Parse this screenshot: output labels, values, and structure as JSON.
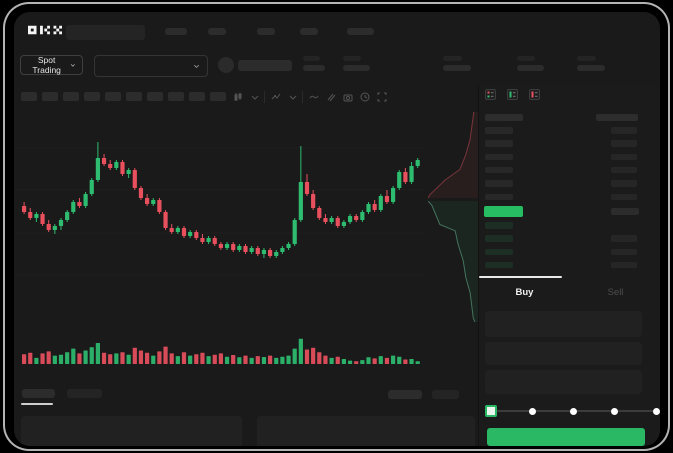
{
  "navbar": {
    "logo_text": "OKX"
  },
  "market_bar": {
    "market_selector": "Spot Trading"
  },
  "toolbar": {
    "interval_buttons": 10,
    "icons": [
      "chart-type-icon",
      "chevron-down-icon",
      "divider",
      "indicators-icon",
      "chevron-down-icon",
      "divider",
      "line-tool-icon",
      "brush-tool-icon",
      "camera-icon",
      "history-clock-icon",
      "fullscreen-icon"
    ]
  },
  "orderbook": {
    "view_icons": [
      "book-all-icon",
      "book-bids-icon",
      "book-asks-icon"
    ],
    "rows": [
      {
        "type": "header",
        "right": true
      },
      {
        "type": "ask",
        "right": true
      },
      {
        "type": "ask",
        "right": true
      },
      {
        "type": "ask",
        "right": true
      },
      {
        "type": "ask",
        "right": true
      },
      {
        "type": "ask",
        "right": true
      },
      {
        "type": "ask",
        "right": true
      },
      {
        "type": "last-price",
        "right": true
      },
      {
        "type": "bid",
        "right": false
      },
      {
        "type": "bid",
        "right": true
      },
      {
        "type": "bid",
        "right": true
      },
      {
        "type": "bid",
        "right": true
      }
    ],
    "last_price_color": "#27bd62"
  },
  "trade_panel": {
    "buy_tab": "Buy",
    "sell_tab": "Sell",
    "input_fields": 3,
    "slider": {
      "stops": [
        0,
        25,
        50,
        75,
        100
      ],
      "active_index": 0
    },
    "buy_button_color": "#2ab864"
  },
  "bottom_bar": {
    "left_tabs": 2,
    "right_buttons": 2,
    "panels": 2,
    "active_tab_index": 0
  },
  "colors": {
    "up": "#2ebd70",
    "down": "#e8505e",
    "accent_green": "#2ab864",
    "surface": "#1a1a1a"
  },
  "chart_data": {
    "type": "candlestick",
    "title": "",
    "note": "skeleton/placeholder trading chart - no numeric axis labels are rendered in the UI",
    "price_scale": "relative 0-100 units (no visible tick labels)",
    "panes": [
      "price",
      "volume",
      "depth-overlay"
    ],
    "grid": "faint horizontal gridlines",
    "up_color": "#2ebd70",
    "down_color": "#e8505e",
    "candles_ohlc": [
      [
        56,
        58,
        52,
        53
      ],
      [
        53,
        55,
        49,
        50
      ],
      [
        50,
        53,
        48,
        52
      ],
      [
        52,
        53,
        46,
        47
      ],
      [
        47,
        49,
        43,
        44
      ],
      [
        44,
        47,
        42,
        46
      ],
      [
        46,
        50,
        44,
        49
      ],
      [
        49,
        54,
        48,
        53
      ],
      [
        53,
        59,
        52,
        58
      ],
      [
        58,
        60,
        55,
        56
      ],
      [
        56,
        63,
        55,
        62
      ],
      [
        62,
        70,
        61,
        69
      ],
      [
        69,
        88,
        68,
        80
      ],
      [
        80,
        82,
        76,
        77
      ],
      [
        77,
        79,
        74,
        75
      ],
      [
        75,
        79,
        74,
        78
      ],
      [
        78,
        79,
        71,
        72
      ],
      [
        72,
        75,
        70,
        74
      ],
      [
        74,
        75,
        64,
        65
      ],
      [
        65,
        66,
        59,
        60
      ],
      [
        60,
        62,
        56,
        57
      ],
      [
        57,
        60,
        56,
        59
      ],
      [
        59,
        60,
        52,
        53
      ],
      [
        53,
        54,
        44,
        45
      ],
      [
        45,
        47,
        42,
        43
      ],
      [
        43,
        46,
        42,
        45
      ],
      [
        45,
        46,
        40,
        41
      ],
      [
        41,
        44,
        40,
        43
      ],
      [
        43,
        44,
        39,
        40
      ],
      [
        40,
        42,
        37,
        38
      ],
      [
        38,
        41,
        37,
        40
      ],
      [
        40,
        41,
        36,
        37
      ],
      [
        37,
        38,
        34,
        35
      ],
      [
        35,
        38,
        34,
        37
      ],
      [
        37,
        38,
        33,
        34
      ],
      [
        34,
        37,
        33,
        36
      ],
      [
        36,
        37,
        32,
        33
      ],
      [
        33,
        36,
        32,
        35
      ],
      [
        35,
        36,
        31,
        32
      ],
      [
        32,
        35,
        30,
        34
      ],
      [
        34,
        35,
        30,
        31
      ],
      [
        31,
        34,
        30,
        33
      ],
      [
        33,
        36,
        32,
        35
      ],
      [
        35,
        38,
        34,
        37
      ],
      [
        37,
        50,
        36,
        49
      ],
      [
        49,
        86,
        48,
        68
      ],
      [
        68,
        72,
        61,
        62
      ],
      [
        62,
        64,
        54,
        55
      ],
      [
        55,
        56,
        49,
        50
      ],
      [
        50,
        52,
        47,
        48
      ],
      [
        48,
        51,
        47,
        50
      ],
      [
        50,
        51,
        45,
        46
      ],
      [
        46,
        49,
        45,
        48
      ],
      [
        48,
        52,
        47,
        51
      ],
      [
        51,
        52,
        48,
        49
      ],
      [
        49,
        54,
        48,
        53
      ],
      [
        53,
        58,
        52,
        57
      ],
      [
        57,
        59,
        53,
        54
      ],
      [
        54,
        62,
        53,
        61
      ],
      [
        61,
        64,
        57,
        58
      ],
      [
        58,
        66,
        57,
        65
      ],
      [
        65,
        74,
        64,
        73
      ],
      [
        73,
        75,
        67,
        68
      ],
      [
        68,
        78,
        67,
        76
      ],
      [
        76,
        80,
        75,
        79
      ]
    ],
    "volume": [
      35,
      40,
      22,
      38,
      45,
      30,
      33,
      42,
      55,
      38,
      48,
      60,
      75,
      40,
      35,
      38,
      42,
      33,
      58,
      48,
      40,
      30,
      45,
      62,
      38,
      28,
      42,
      30,
      35,
      40,
      28,
      33,
      38,
      26,
      32,
      24,
      30,
      22,
      28,
      25,
      30,
      22,
      26,
      30,
      55,
      90,
      52,
      58,
      42,
      30,
      22,
      26,
      18,
      12,
      10,
      14,
      24,
      20,
      28,
      22,
      30,
      26,
      16,
      18,
      10
    ],
    "depth_overlay": {
      "ask_color": "#e8505e",
      "bid_color": "#2ebd70",
      "asks_curve": [
        [
          1,
          0
        ],
        [
          0.92,
          0.01
        ],
        [
          0.85,
          0.14
        ],
        [
          0.77,
          0.21
        ],
        [
          0.66,
          0.28
        ],
        [
          0.38,
          0.33
        ],
        [
          0.09,
          0.4
        ],
        [
          0.06,
          0.415
        ]
      ],
      "bids_curve": [
        [
          0.06,
          0.43
        ],
        [
          0.13,
          0.45
        ],
        [
          0.28,
          0.54
        ],
        [
          0.57,
          0.57
        ],
        [
          0.62,
          0.63
        ],
        [
          0.72,
          0.71
        ],
        [
          0.77,
          0.79
        ],
        [
          0.85,
          0.86
        ],
        [
          0.91,
          0.98
        ],
        [
          0.94,
          1
        ]
      ]
    }
  }
}
